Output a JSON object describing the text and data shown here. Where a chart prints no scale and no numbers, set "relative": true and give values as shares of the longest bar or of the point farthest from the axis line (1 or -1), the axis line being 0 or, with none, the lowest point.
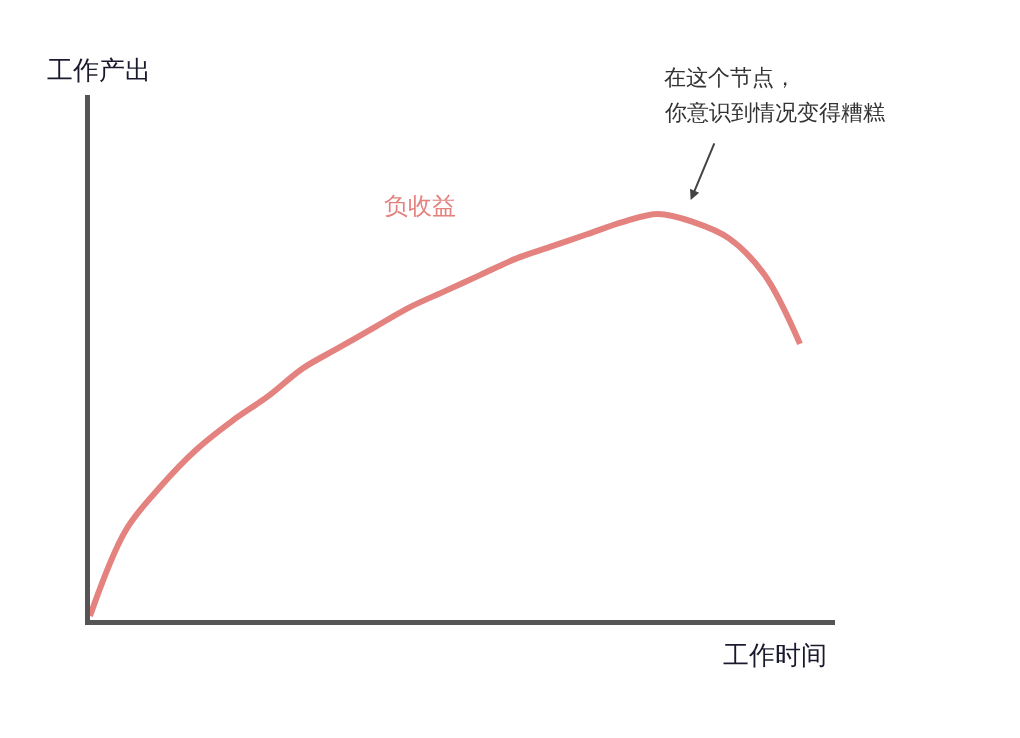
{
  "chart_data": {
    "type": "line",
    "relative": true,
    "xlabel": "工作时间",
    "ylabel": "工作产出",
    "legend": false,
    "marker": "none",
    "line_style": "solid",
    "categories": [
      null,
      null,
      null,
      null,
      null,
      null,
      null,
      null,
      null,
      null,
      null,
      null,
      null,
      null,
      null,
      null,
      null,
      null,
      null,
      null,
      null
    ],
    "series": [
      {
        "name": "负收益",
        "color": "#e3827e",
        "values": [
          0.01,
          0.22,
          0.33,
          0.42,
          0.49,
          0.55,
          0.62,
          0.67,
          0.72,
          0.77,
          0.81,
          0.85,
          0.89,
          0.92,
          0.95,
          0.98,
          1.0,
          0.98,
          0.94,
          0.85,
          0.68
        ]
      }
    ],
    "annotations": [
      "在这个节点，",
      "你意识到情况变得糟糕"
    ]
  }
}
